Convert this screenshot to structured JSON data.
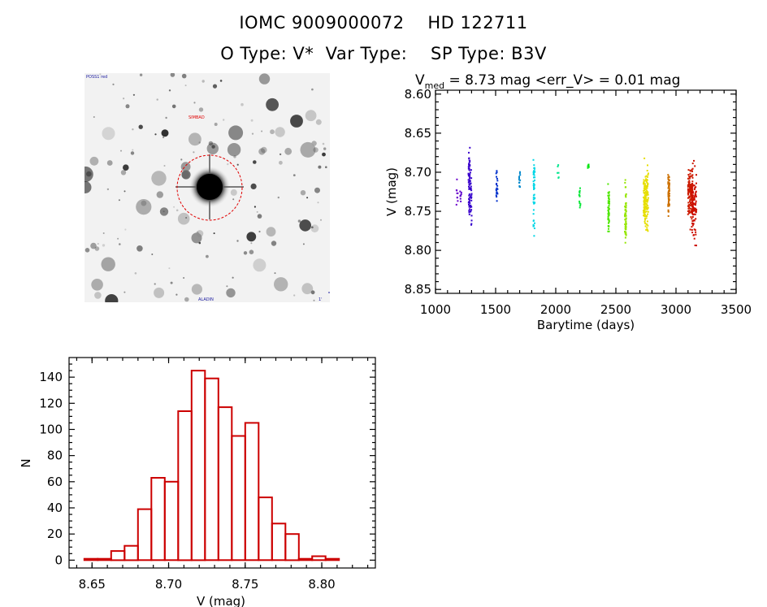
{
  "header": {
    "line1": "IOMC 9009000072    HD 122711",
    "line2": "O Type: V*  Var Type:    SP Type: B3V"
  },
  "finder_image": {
    "annotations": [
      "POSS1 red",
      "SIMBAD",
      "ALADIN",
      "1'"
    ]
  },
  "chart_data": [
    {
      "type": "scatter",
      "title_parts": [
        "V",
        "med",
        " = 8.73 mag <err_V> = 0.01 mag"
      ],
      "xlabel": "Barytime (days)",
      "ylabel": "V (mag)",
      "xlim": [
        1000,
        3500
      ],
      "ylim": [
        8.855,
        8.595
      ],
      "y_inverted": true,
      "xticks": [
        1000,
        1500,
        2000,
        2500,
        3000,
        3500
      ],
      "yticks": [
        8.6,
        8.65,
        8.7,
        8.75,
        8.8,
        8.85
      ],
      "xtick_labels": [
        "1000",
        "1500",
        "2000",
        "2500",
        "3000",
        "3500"
      ],
      "ytick_labels": [
        "8.60",
        "8.65",
        "8.70",
        "8.75",
        "8.80",
        "8.85"
      ],
      "color_scale": "rainbow by time",
      "groups": [
        {
          "x": 1180,
          "ymin": 8.705,
          "ymax": 8.745,
          "n": 9
        },
        {
          "x": 1210,
          "ymin": 8.715,
          "ymax": 8.745,
          "n": 8
        },
        {
          "x": 1280,
          "ymin": 8.645,
          "ymax": 8.79,
          "n": 60
        },
        {
          "x": 1295,
          "ymin": 8.685,
          "ymax": 8.785,
          "n": 30
        },
        {
          "x": 1510,
          "ymin": 8.69,
          "ymax": 8.755,
          "n": 22
        },
        {
          "x": 1700,
          "ymin": 8.69,
          "ymax": 8.735,
          "n": 12
        },
        {
          "x": 1820,
          "ymin": 8.66,
          "ymax": 8.795,
          "n": 45
        },
        {
          "x": 2020,
          "ymin": 8.675,
          "ymax": 8.715,
          "n": 6
        },
        {
          "x": 2200,
          "ymin": 8.7,
          "ymax": 8.765,
          "n": 12
        },
        {
          "x": 2270,
          "ymin": 8.685,
          "ymax": 8.7,
          "n": 6
        },
        {
          "x": 2440,
          "ymin": 8.7,
          "ymax": 8.79,
          "n": 45
        },
        {
          "x": 2580,
          "ymin": 8.695,
          "ymax": 8.815,
          "n": 60
        },
        {
          "x": 2750,
          "ymin": 8.675,
          "ymax": 8.79,
          "n": 140
        },
        {
          "x": 2940,
          "ymin": 8.685,
          "ymax": 8.77,
          "n": 60
        },
        {
          "x": 3120,
          "ymin": 8.675,
          "ymax": 8.785,
          "n": 140
        },
        {
          "x": 3150,
          "ymin": 8.68,
          "ymax": 8.805,
          "n": 90
        }
      ]
    },
    {
      "type": "histogram",
      "xlabel": "V (mag)",
      "ylabel": "N",
      "xlim": [
        8.635,
        8.835
      ],
      "ylim": [
        -6,
        155
      ],
      "xticks": [
        8.65,
        8.7,
        8.75,
        8.8
      ],
      "xtick_labels": [
        "8.65",
        "8.70",
        "8.75",
        "8.80"
      ],
      "yticks": [
        0,
        20,
        40,
        60,
        80,
        100,
        120,
        140
      ],
      "ytick_labels": [
        "0",
        "20",
        "40",
        "60",
        "80",
        "100",
        "120",
        "140"
      ],
      "bin_start": 8.645,
      "bin_width": 0.00875,
      "values": [
        1,
        1,
        7,
        11,
        39,
        63,
        60,
        114,
        145,
        139,
        117,
        95,
        105,
        48,
        28,
        20,
        1,
        3,
        1
      ],
      "color": "#cc0000"
    }
  ]
}
